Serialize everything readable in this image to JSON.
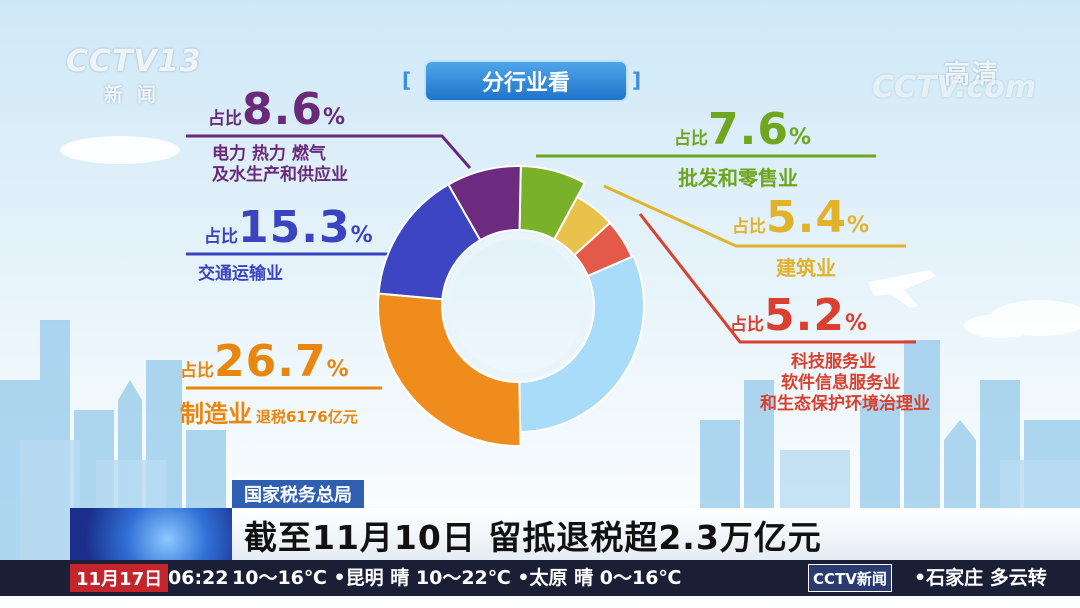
{
  "channel": {
    "logo": "CCTV13",
    "sub": "新闻",
    "quality": "高清",
    "watermark": "CCTV.com"
  },
  "title": "分行业看",
  "bracket_left": "[",
  "bracket_right": "]",
  "chart_data": {
    "type": "pie",
    "title": "分行业看",
    "slices": [
      {
        "prefix": "占比",
        "value": 7.6,
        "value_text": "7.6",
        "unit": "%",
        "lines": [
          "批发和零售业"
        ],
        "color": "#79b22a"
      },
      {
        "prefix": "占比",
        "value": 5.4,
        "value_text": "5.4",
        "unit": "%",
        "lines": [
          "建筑业"
        ],
        "color": "#e8c24a"
      },
      {
        "prefix": "占比",
        "value": 5.2,
        "value_text": "5.2",
        "unit": "%",
        "lines": [
          "科技服务业",
          "软件信息服务业",
          "和生态保护环境治理业"
        ],
        "color": "#e4594a"
      },
      {
        "prefix": "",
        "value": 31.2,
        "value_text": "",
        "unit": "",
        "lines": [],
        "color": "#a9dcf8"
      },
      {
        "prefix": "占比",
        "value": 26.7,
        "value_text": "26.7",
        "unit": "%",
        "lines": [
          "制造业"
        ],
        "extra": "退税6176亿元",
        "color": "#ef8c1c"
      },
      {
        "prefix": "占比",
        "value": 15.3,
        "value_text": "15.3",
        "unit": "%",
        "lines": [
          "交通运输业"
        ],
        "color": "#3d45c2"
      },
      {
        "prefix": "占比",
        "value": 8.6,
        "value_text": "8.6",
        "unit": "%",
        "lines": [
          "电力 热力 燃气",
          "及水生产和供应业"
        ],
        "color": "#6c2b7e"
      }
    ],
    "label_colors": {
      "retail": "#6fa51f",
      "construction": "#e3b22c",
      "tech": "#d9402f",
      "manufacturing": "#e8860f",
      "transport": "#3b44c0",
      "power": "#6a2a7a"
    }
  },
  "news": {
    "source": "国家税务总局",
    "headline": "截至11月10日 留抵退税超2.3万亿元",
    "date": "11月17日",
    "time": "06:22",
    "ticker": "10～16℃ •昆明 晴 10～22℃ •太原 晴 0～16℃",
    "bar_logo": "CCTV新闻",
    "ticker_tail": "•石家庄 多云转"
  }
}
